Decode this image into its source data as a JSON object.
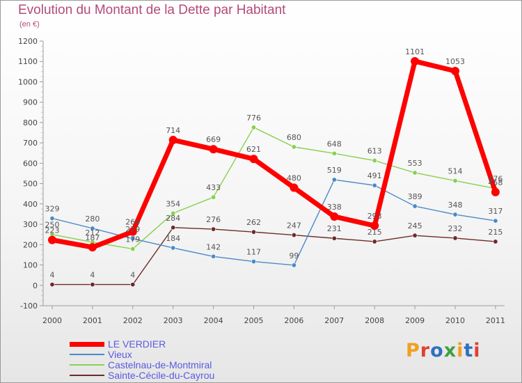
{
  "title": "Evolution du Montant de la Dette par Habitant",
  "subtitle": "(en €)",
  "logo": {
    "text": "Proxiti",
    "colors": [
      "#f0a020",
      "#e04030",
      "#3070c0",
      "#40a040",
      "#f0a020",
      "#3070c0",
      "#e04030"
    ]
  },
  "chart_data": {
    "type": "line",
    "x": [
      "2000",
      "2001",
      "2002",
      "2003",
      "2004",
      "2005",
      "2006",
      "2007",
      "2008",
      "2009",
      "2010",
      "2011"
    ],
    "ylim": [
      -100,
      1200
    ],
    "yticks": [
      "-100",
      "0",
      "100",
      "200",
      "300",
      "400",
      "500",
      "600",
      "700",
      "800",
      "900",
      "1000",
      "1100",
      "1200"
    ],
    "grid": false,
    "legend_position": "bottom-left",
    "series": [
      {
        "name": "LE VERDIER",
        "color": "#ff0000",
        "values": [
          223,
          187,
          264,
          714,
          669,
          621,
          480,
          338,
          293,
          1101,
          1053,
          458
        ],
        "labels": [
          "223",
          "187",
          "264",
          "714",
          "669",
          "621",
          "480",
          "338",
          "293",
          "1101",
          "1053",
          "458"
        ]
      },
      {
        "name": "Vieux",
        "color": "#4a8ac8",
        "values": [
          329,
          280,
          229,
          184,
          142,
          117,
          99,
          519,
          491,
          389,
          348,
          317
        ],
        "labels": [
          "329",
          "280",
          "229",
          "184",
          "142",
          "117",
          "99",
          "519",
          "491",
          "389",
          "348",
          "317"
        ]
      },
      {
        "name": "Castelnau-de-Montmiral",
        "color": "#88d050",
        "values": [
          250,
          212,
          179,
          354,
          433,
          776,
          680,
          648,
          613,
          553,
          514,
          476
        ],
        "labels": [
          "250",
          "212",
          "179",
          "354",
          "433",
          "776",
          "680",
          "648",
          "613",
          "553",
          "514",
          "476"
        ]
      },
      {
        "name": "Sainte-Cécile-du-Cayrou",
        "color": "#6e2a2a",
        "values": [
          4,
          4,
          4,
          284,
          276,
          262,
          247,
          231,
          215,
          245,
          232,
          215
        ],
        "labels": [
          "4",
          "4",
          "4",
          "284",
          "276",
          "262",
          "247",
          "231",
          "215",
          "245",
          "232",
          "215"
        ]
      }
    ]
  }
}
